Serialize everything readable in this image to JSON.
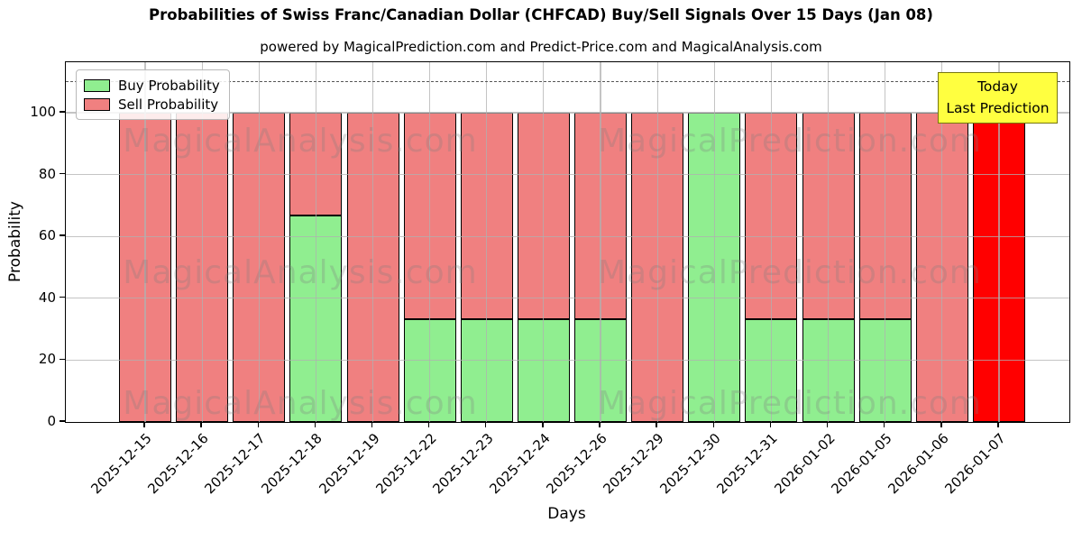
{
  "header": {
    "title": "Probabilities of Swiss Franc/Canadian Dollar (CHFCAD) Buy/Sell Signals Over 15 Days (Jan 08)",
    "subtitle": "powered by MagicalPrediction.com and Predict-Price.com and MagicalAnalysis.com"
  },
  "chart_data": {
    "type": "bar",
    "stacked": true,
    "title": "Probabilities of Swiss Franc/Canadian Dollar (CHFCAD) Buy/Sell Signals Over 15 Days (Jan 08)",
    "xlabel": "Days",
    "ylabel": "Probability",
    "categories": [
      "2025-12-15",
      "2025-12-16",
      "2025-12-17",
      "2025-12-18",
      "2025-12-19",
      "2025-12-22",
      "2025-12-23",
      "2025-12-24",
      "2025-12-26",
      "2025-12-29",
      "2025-12-30",
      "2025-12-31",
      "2026-01-02",
      "2026-01-05",
      "2026-01-06",
      "2026-01-07"
    ],
    "series": [
      {
        "name": "Buy Probability",
        "color": "#90EE90",
        "values": [
          0,
          0,
          0,
          66.67,
          0,
          33.33,
          33.33,
          33.33,
          33.33,
          0,
          100,
          33.33,
          33.33,
          33.33,
          0,
          0
        ]
      },
      {
        "name": "Sell Probability",
        "color": "#F08080",
        "values": [
          100,
          100,
          100,
          33.33,
          100,
          66.67,
          66.67,
          66.67,
          66.67,
          100,
          0,
          66.67,
          66.67,
          66.67,
          100,
          100
        ]
      }
    ],
    "today_bar_color": "#FF0000",
    "yticks": [
      0,
      20,
      40,
      60,
      80,
      100
    ],
    "ylim": [
      0,
      116.3
    ],
    "dashed_line_y": 110,
    "grid": true,
    "legend_position": "upper left",
    "bar_edge_color": "#000000"
  },
  "legend": {
    "buy_label": "Buy Probability",
    "sell_label": "Sell Probability"
  },
  "annotation_box": {
    "line1": "Today",
    "line2": "Last Prediction",
    "bg_color": "#FFFF40",
    "border_color": "#77770e"
  },
  "watermarks": {
    "left": "MagicalAnalysis.com",
    "right": "MagicalPrediction.com"
  }
}
